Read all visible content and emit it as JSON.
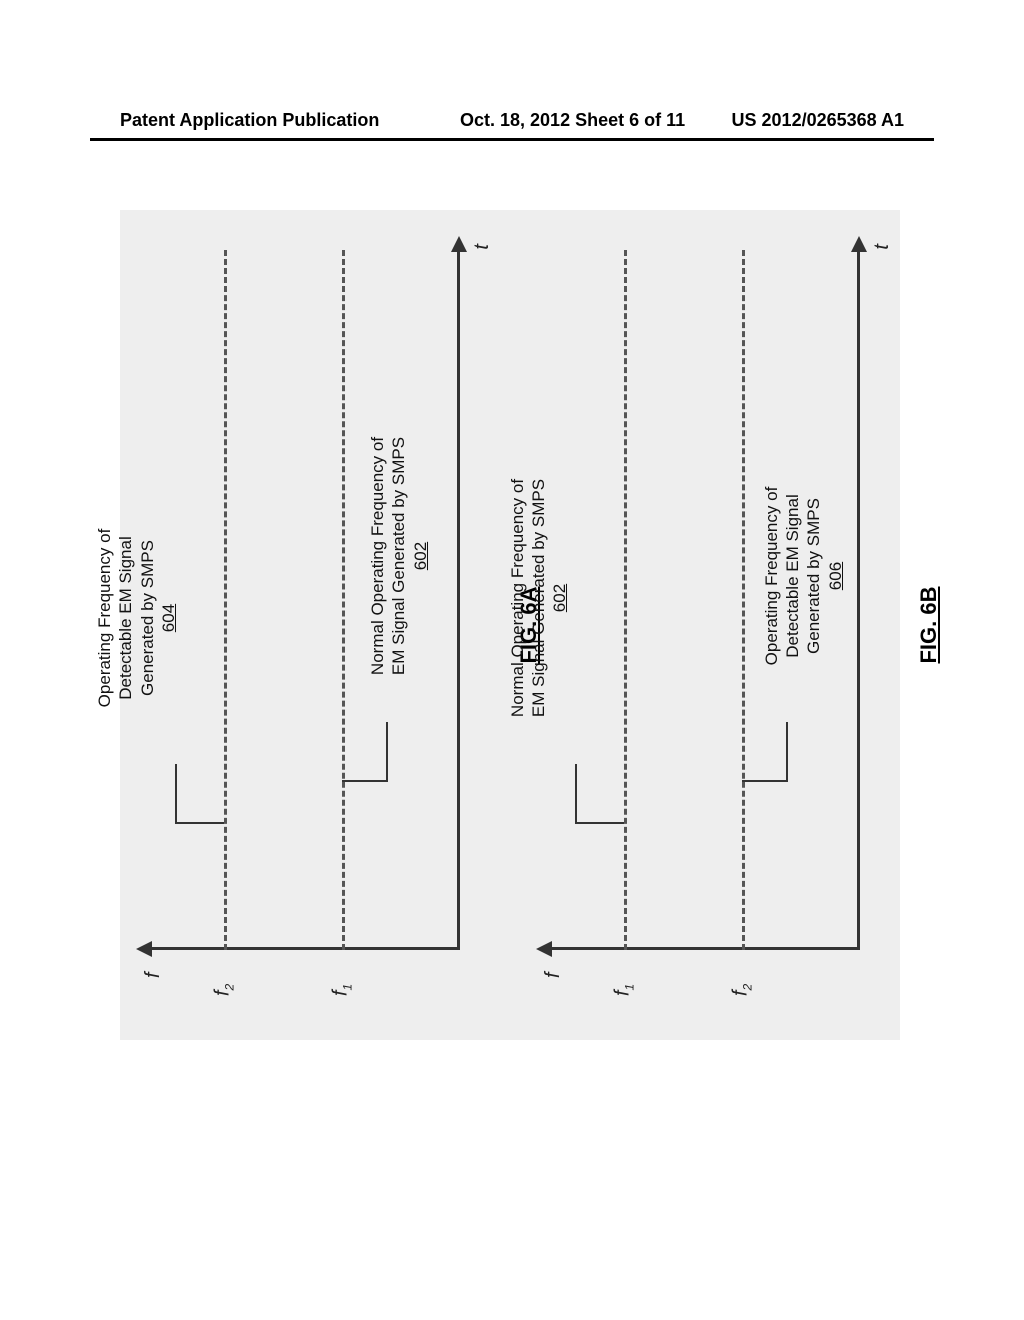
{
  "header": {
    "left": "Patent Application Publication",
    "center": "Oct. 18, 2012  Sheet 6 of 11",
    "right": "US 2012/0265368 A1"
  },
  "drawing": {
    "background_color": "#eeeeee",
    "axis_color": "#333333",
    "dash_color": "#555555",
    "text_color": "#111111"
  },
  "figA": {
    "fig_label": "FIG. 6A",
    "y_axis_label": "f",
    "x_axis_label": "t",
    "line_upper": {
      "tick_label": "f",
      "tick_sub": "2",
      "pct_from_top": 24,
      "callout_title": "Operating Frequency of\nDetectable EM Signal\nGenerated by SMPS",
      "callout_ref": "604"
    },
    "line_lower": {
      "tick_label": "f",
      "tick_sub": "1",
      "pct_from_top": 62,
      "callout_title": "Normal Operating Frequency of\nEM Signal Generated by SMPS",
      "callout_ref": "602"
    }
  },
  "figB": {
    "fig_label": "FIG. 6B",
    "y_axis_label": "f",
    "x_axis_label": "t",
    "line_upper": {
      "tick_label": "f",
      "tick_sub": "1",
      "pct_from_top": 24,
      "callout_title": "Normal Operating Frequency of\nEM Signal Generated by SMPS",
      "callout_ref": "602"
    },
    "line_lower": {
      "tick_label": "f",
      "tick_sub": "2",
      "pct_from_top": 62,
      "callout_title": "Operating Frequency of\nDetectable EM Signal\nGenerated by SMPS",
      "callout_ref": "606"
    }
  }
}
